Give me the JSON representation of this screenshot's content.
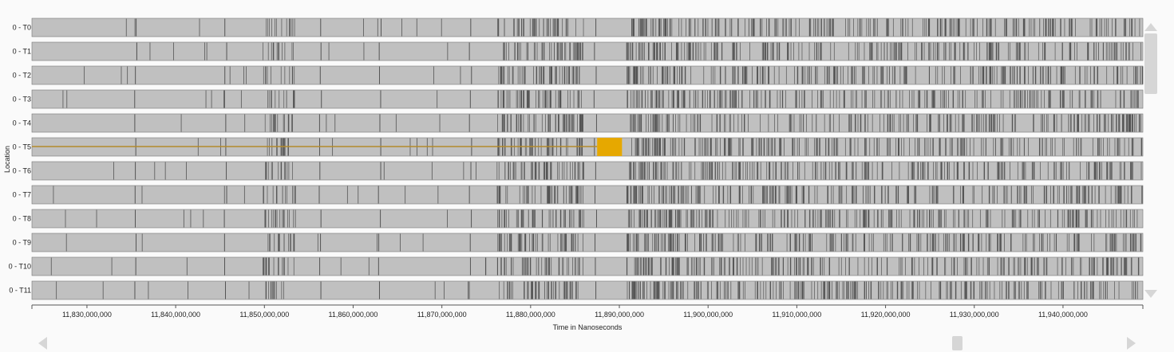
{
  "chart_data": {
    "type": "timeline",
    "title": "",
    "xlabel": "Time in Nanoseconds",
    "ylabel": "Location",
    "xlim": [
      11823800000,
      11949000000
    ],
    "x_ticks": [
      11830000000,
      11840000000,
      11850000000,
      11860000000,
      11870000000,
      11880000000,
      11890000000,
      11900000000,
      11910000000,
      11920000000,
      11930000000,
      11940000000
    ],
    "x_tick_labels": [
      "11,830,000,000",
      "11,840,000,000",
      "11,850,000,000",
      "11,860,000,000",
      "11,870,000,000",
      "11,880,000,000",
      "11,890,000,000",
      "11,900,000,000",
      "11,910,000,000",
      "11,920,000,000",
      "11,930,000,000",
      "11,940,000,000"
    ],
    "lanes": [
      "0 - T0",
      "0 - T1",
      "0 - T2",
      "0 - T3",
      "0 - T4",
      "0 - T5",
      "0 - T6",
      "0 - T7",
      "0 - T8",
      "0 - T9",
      "0 - T10",
      "0 - T11"
    ],
    "lane_fill_color": "#c0c0c0",
    "event_line_color": "#555555",
    "highlight": {
      "lane": "0 - T5",
      "color": "#e6a800",
      "line_color": "#b38a2a",
      "line_from": 11823800000,
      "line_to": 11887500000,
      "block_from": 11887500000,
      "block_to": 11890300000
    },
    "event_clusters": [
      {
        "from": 11849800000,
        "to": 11853500000,
        "density": 0.55
      },
      {
        "from": 11876200000,
        "to": 11886000000,
        "density": 0.75
      },
      {
        "from": 11890800000,
        "to": 11897200000,
        "density": 1.0
      },
      {
        "from": 11897200000,
        "to": 11949000000,
        "density": 0.55
      }
    ],
    "sparse_events": [
      11835500000,
      11845600000,
      11856300000,
      11863000000,
      11873200000,
      11887300000
    ],
    "grid": false,
    "legend": "none"
  },
  "controls": {
    "scroll_up_icon": "triangle-up-icon",
    "scroll_down_icon": "triangle-down-icon",
    "scroll_left_icon": "triangle-left-icon",
    "scroll_right_icon": "triangle-right-icon",
    "vertical_scroll_position": 0.0,
    "horizontal_scroll_position": 0.98
  }
}
